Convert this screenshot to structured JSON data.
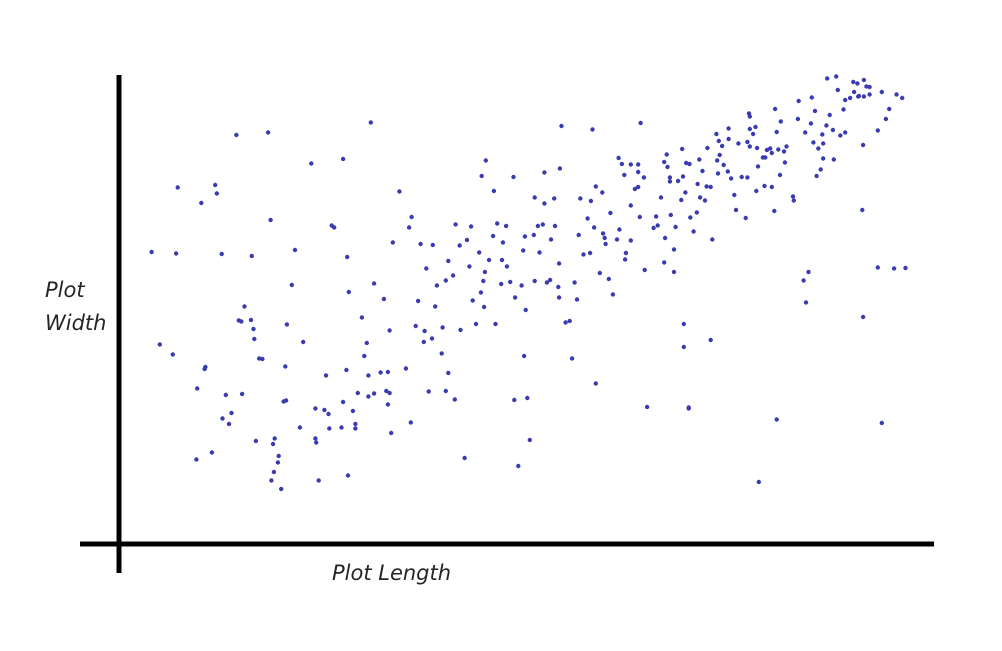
{
  "chart_data": {
    "type": "scatter",
    "title": "",
    "xlabel": "Plot Length",
    "ylabel_lines": [
      "Plot",
      "Width"
    ],
    "xlim": [
      0,
      100
    ],
    "ylim": [
      0,
      100
    ],
    "grid": false,
    "legend": "none",
    "colors": {
      "point": "#3b3bb0",
      "axis": "#000000",
      "label": "#262626"
    },
    "points": [
      [
        4.0,
        58.4
      ],
      [
        5.0,
        39.9
      ],
      [
        6.6,
        37.9
      ],
      [
        7.0,
        58.1
      ],
      [
        7.2,
        71.3
      ],
      [
        9.5,
        16.9
      ],
      [
        9.6,
        31.1
      ],
      [
        10.1,
        68.2
      ],
      [
        10.5,
        35.0
      ],
      [
        10.6,
        35.4
      ],
      [
        11.4,
        18.3
      ],
      [
        11.8,
        71.8
      ],
      [
        12.0,
        70.1
      ],
      [
        12.6,
        58.0
      ],
      [
        12.7,
        25.1
      ],
      [
        13.1,
        29.8
      ],
      [
        13.5,
        24.0
      ],
      [
        13.8,
        26.2
      ],
      [
        14.4,
        81.8
      ],
      [
        14.7,
        44.7
      ],
      [
        15.0,
        44.5
      ],
      [
        15.1,
        30.0
      ],
      [
        15.4,
        47.5
      ],
      [
        16.3,
        57.6
      ],
      [
        16.2,
        44.8
      ],
      [
        16.6,
        41.0
      ],
      [
        16.5,
        43.0
      ],
      [
        16.8,
        20.6
      ],
      [
        17.2,
        37.1
      ],
      [
        17.6,
        37.0
      ],
      [
        18.3,
        82.3
      ],
      [
        18.6,
        64.8
      ],
      [
        18.9,
        20.0
      ],
      [
        18.7,
        12.7
      ],
      [
        19.1,
        21.1
      ],
      [
        19.6,
        17.6
      ],
      [
        19.0,
        14.4
      ],
      [
        19.5,
        16.3
      ],
      [
        19.9,
        11.0
      ],
      [
        20.2,
        28.5
      ],
      [
        20.5,
        28.7
      ],
      [
        20.4,
        35.5
      ],
      [
        20.6,
        43.9
      ],
      [
        21.2,
        51.8
      ],
      [
        21.6,
        58.8
      ],
      [
        22.2,
        23.3
      ],
      [
        22.6,
        40.4
      ],
      [
        24.1,
        27.1
      ],
      [
        23.6,
        76.1
      ],
      [
        24.5,
        12.7
      ],
      [
        24.1,
        21.1
      ],
      [
        24.2,
        20.3
      ],
      [
        25.4,
        33.7
      ],
      [
        25.2,
        26.8
      ],
      [
        25.8,
        23.1
      ],
      [
        25.7,
        26.0
      ],
      [
        26.4,
        63.3
      ],
      [
        26.1,
        63.7
      ],
      [
        27.3,
        23.3
      ],
      [
        27.5,
        28.4
      ],
      [
        27.9,
        34.8
      ],
      [
        28.2,
        50.4
      ],
      [
        27.5,
        77.0
      ],
      [
        28.0,
        57.4
      ],
      [
        28.7,
        26.6
      ],
      [
        29.0,
        24.0
      ],
      [
        28.1,
        13.7
      ],
      [
        29.3,
        30.2
      ],
      [
        29.0,
        23.1
      ],
      [
        29.8,
        45.3
      ],
      [
        30.4,
        40.2
      ],
      [
        30.6,
        33.7
      ],
      [
        30.6,
        29.5
      ],
      [
        30.1,
        37.6
      ],
      [
        31.3,
        30.1
      ],
      [
        31.3,
        52.1
      ],
      [
        30.9,
        84.3
      ],
      [
        32.1,
        34.3
      ],
      [
        32.5,
        49.0
      ],
      [
        33.0,
        34.4
      ],
      [
        33.2,
        30.2
      ],
      [
        32.8,
        30.6
      ],
      [
        33.0,
        27.9
      ],
      [
        33.4,
        22.2
      ],
      [
        33.2,
        42.7
      ],
      [
        33.6,
        60.3
      ],
      [
        34.4,
        70.5
      ],
      [
        35.2,
        35.1
      ],
      [
        35.6,
        63.3
      ],
      [
        35.8,
        24.3
      ],
      [
        35.9,
        65.4
      ],
      [
        36.7,
        48.6
      ],
      [
        36.4,
        43.6
      ],
      [
        37.0,
        60.0
      ],
      [
        37.5,
        42.6
      ],
      [
        37.4,
        40.4
      ],
      [
        37.7,
        55.1
      ],
      [
        38.5,
        59.8
      ],
      [
        38.0,
        30.5
      ],
      [
        38.4,
        41.1
      ],
      [
        38.8,
        47.5
      ],
      [
        39.0,
        51.7
      ],
      [
        39.7,
        43.3
      ],
      [
        39.6,
        38.1
      ],
      [
        40.1,
        30.6
      ],
      [
        40.1,
        52.7
      ],
      [
        40.4,
        56.6
      ],
      [
        40.4,
        34.2
      ],
      [
        41.2,
        28.9
      ],
      [
        41.0,
        53.7
      ],
      [
        41.3,
        63.9
      ],
      [
        41.8,
        59.7
      ],
      [
        42.4,
        17.2
      ],
      [
        41.9,
        42.8
      ],
      [
        43.2,
        63.5
      ],
      [
        43.0,
        55.5
      ],
      [
        42.7,
        60.8
      ],
      [
        43.4,
        48.7
      ],
      [
        43.8,
        44.0
      ],
      [
        44.2,
        58.3
      ],
      [
        44.5,
        73.6
      ],
      [
        44.7,
        52.6
      ],
      [
        44.9,
        54.4
      ],
      [
        44.4,
        50.3
      ],
      [
        45.0,
        76.7
      ],
      [
        44.8,
        47.4
      ],
      [
        45.4,
        56.8
      ],
      [
        45.9,
        61.6
      ],
      [
        46.0,
        70.6
      ],
      [
        46.2,
        44.0
      ],
      [
        46.4,
        64.1
      ],
      [
        46.9,
        52.0
      ],
      [
        47.0,
        56.8
      ],
      [
        47.6,
        55.5
      ],
      [
        47.1,
        60.3
      ],
      [
        47.5,
        63.6
      ],
      [
        48.0,
        52.4
      ],
      [
        48.4,
        73.4
      ],
      [
        48.6,
        49.3
      ],
      [
        48.5,
        28.8
      ],
      [
        49.0,
        15.6
      ],
      [
        49.4,
        51.7
      ],
      [
        49.9,
        46.8
      ],
      [
        49.6,
        58.7
      ],
      [
        49.8,
        61.5
      ],
      [
        49.7,
        37.6
      ],
      [
        50.1,
        29.2
      ],
      [
        50.4,
        20.8
      ],
      [
        50.9,
        61.8
      ],
      [
        51.0,
        52.6
      ],
      [
        51.4,
        63.6
      ],
      [
        51.0,
        69.3
      ],
      [
        51.6,
        58.3
      ],
      [
        52.2,
        74.3
      ],
      [
        52.2,
        68.1
      ],
      [
        52.0,
        63.9
      ],
      [
        52.5,
        52.3
      ],
      [
        52.9,
        52.8
      ],
      [
        53.4,
        69.1
      ],
      [
        53.0,
        60.9
      ],
      [
        53.5,
        63.6
      ],
      [
        54.0,
        56.1
      ],
      [
        53.9,
        51.4
      ],
      [
        54.0,
        49.3
      ],
      [
        54.3,
        83.6
      ],
      [
        54.1,
        75.1
      ],
      [
        54.8,
        44.3
      ],
      [
        55.3,
        44.6
      ],
      [
        55.6,
        37.1
      ],
      [
        55.9,
        52.3
      ],
      [
        56.4,
        61.8
      ],
      [
        56.2,
        48.9
      ],
      [
        56.6,
        69.1
      ],
      [
        57.0,
        57.9
      ],
      [
        57.5,
        65.1
      ],
      [
        57.8,
        58.2
      ],
      [
        57.9,
        68.6
      ],
      [
        58.3,
        63.3
      ],
      [
        58.5,
        71.5
      ],
      [
        58.5,
        32.1
      ],
      [
        58.1,
        82.9
      ],
      [
        59.0,
        54.2
      ],
      [
        59.4,
        62.1
      ],
      [
        59.3,
        70.3
      ],
      [
        59.6,
        61.2
      ],
      [
        59.7,
        60.0
      ],
      [
        60.1,
        53.0
      ],
      [
        60.6,
        49.9
      ],
      [
        60.3,
        66.2
      ],
      [
        61.1,
        60.9
      ],
      [
        61.4,
        62.9
      ],
      [
        61.3,
        77.2
      ],
      [
        61.7,
        76.0
      ],
      [
        62.1,
        56.9
      ],
      [
        62.2,
        58.2
      ],
      [
        62.0,
        73.8
      ],
      [
        62.8,
        60.7
      ],
      [
        62.8,
        67.7
      ],
      [
        62.8,
        75.9
      ],
      [
        63.3,
        71.0
      ],
      [
        63.7,
        71.4
      ],
      [
        64.0,
        84.2
      ],
      [
        63.7,
        75.9
      ],
      [
        63.7,
        74.4
      ],
      [
        63.9,
        65.4
      ],
      [
        64.4,
        73.3
      ],
      [
        64.5,
        54.8
      ],
      [
        64.8,
        27.4
      ],
      [
        65.6,
        63.2
      ],
      [
        66.1,
        63.7
      ],
      [
        65.9,
        65.5
      ],
      [
        66.5,
        69.3
      ],
      [
        66.9,
        56.3
      ],
      [
        67.0,
        61.2
      ],
      [
        66.9,
        76.4
      ],
      [
        67.2,
        77.9
      ],
      [
        67.3,
        75.4
      ],
      [
        67.6,
        73.3
      ],
      [
        67.7,
        65.8
      ],
      [
        67.6,
        72.5
      ],
      [
        68.1,
        54.4
      ],
      [
        68.3,
        63.4
      ],
      [
        68.1,
        58.9
      ],
      [
        69.0,
        68.8
      ],
      [
        68.6,
        72.6
      ],
      [
        69.2,
        73.5
      ],
      [
        69.1,
        79.0
      ],
      [
        69.5,
        70.3
      ],
      [
        69.6,
        76.2
      ],
      [
        69.3,
        44.0
      ],
      [
        69.3,
        39.4
      ],
      [
        70.0,
        76.0
      ],
      [
        70.5,
        62.5
      ],
      [
        69.9,
        27.1
      ],
      [
        69.9,
        27.3
      ],
      [
        70.1,
        65.3
      ],
      [
        71.0,
        72.0
      ],
      [
        70.9,
        66.3
      ],
      [
        71.2,
        76.9
      ],
      [
        71.6,
        74.6
      ],
      [
        71.3,
        69.3
      ],
      [
        72.1,
        71.5
      ],
      [
        72.2,
        79.2
      ],
      [
        71.9,
        68.7
      ],
      [
        72.6,
        71.4
      ],
      [
        72.6,
        40.8
      ],
      [
        72.8,
        60.9
      ],
      [
        73.3,
        82.0
      ],
      [
        73.5,
        74.1
      ],
      [
        73.4,
        76.7
      ],
      [
        73.7,
        77.8
      ],
      [
        73.6,
        80.6
      ],
      [
        74.2,
        75.8
      ],
      [
        74.7,
        74.5
      ],
      [
        74.0,
        79.6
      ],
      [
        74.8,
        81.0
      ],
      [
        74.8,
        83.1
      ],
      [
        75.1,
        73.1
      ],
      [
        75.5,
        69.8
      ],
      [
        76.0,
        80.1
      ],
      [
        75.7,
        66.8
      ],
      [
        76.4,
        73.4
      ],
      [
        76.9,
        65.2
      ],
      [
        77.1,
        73.3
      ],
      [
        77.3,
        86.1
      ],
      [
        77.4,
        85.5
      ],
      [
        77.1,
        80.4
      ],
      [
        77.4,
        83.0
      ],
      [
        77.4,
        79.5
      ],
      [
        77.8,
        82.0
      ],
      [
        78.1,
        83.4
      ],
      [
        78.3,
        79.2
      ],
      [
        78.2,
        70.6
      ],
      [
        78.4,
        75.5
      ],
      [
        78.5,
        12.4
      ],
      [
        79.0,
        77.3
      ],
      [
        79.5,
        78.8
      ],
      [
        79.3,
        77.3
      ],
      [
        79.9,
        79.1
      ],
      [
        79.2,
        71.6
      ],
      [
        80.1,
        71.4
      ],
      [
        80.1,
        78.2
      ],
      [
        80.5,
        87.0
      ],
      [
        80.7,
        82.4
      ],
      [
        80.9,
        78.9
      ],
      [
        80.4,
        66.6
      ],
      [
        80.7,
        24.9
      ],
      [
        81.1,
        73.8
      ],
      [
        81.2,
        84.5
      ],
      [
        81.6,
        78.5
      ],
      [
        81.7,
        76.3
      ],
      [
        81.9,
        79.5
      ],
      [
        82.8,
        68.7
      ],
      [
        82.7,
        69.5
      ],
      [
        83.4,
        88.6
      ],
      [
        83.3,
        85.0
      ],
      [
        84.3,
        48.3
      ],
      [
        84.6,
        54.4
      ],
      [
        84.0,
        52.7
      ],
      [
        84.2,
        82.3
      ],
      [
        85.0,
        89.3
      ],
      [
        84.9,
        84.1
      ],
      [
        85.2,
        80.3
      ],
      [
        85.4,
        86.6
      ],
      [
        85.6,
        73.6
      ],
      [
        85.8,
        79.1
      ],
      [
        86.1,
        74.9
      ],
      [
        86.4,
        77.1
      ],
      [
        86.4,
        80.1
      ],
      [
        86.3,
        81.9
      ],
      [
        86.9,
        93.1
      ],
      [
        86.8,
        83.7
      ],
      [
        87.2,
        85.8
      ],
      [
        87.6,
        82.8
      ],
      [
        88.0,
        93.5
      ],
      [
        87.7,
        76.9
      ],
      [
        88.2,
        90.8
      ],
      [
        88.5,
        81.7
      ],
      [
        88.9,
        86.9
      ],
      [
        89.1,
        82.3
      ],
      [
        89.1,
        88.8
      ],
      [
        89.7,
        89.2
      ],
      [
        90.2,
        90.4
      ],
      [
        90.1,
        92.4
      ],
      [
        90.7,
        89.5
      ],
      [
        90.6,
        92.1
      ],
      [
        90.8,
        89.6
      ],
      [
        91.3,
        79.8
      ],
      [
        91.4,
        92.8
      ],
      [
        91.4,
        89.5
      ],
      [
        91.2,
        66.8
      ],
      [
        91.3,
        45.4
      ],
      [
        91.7,
        91.5
      ],
      [
        92.1,
        91.4
      ],
      [
        92.1,
        89.9
      ],
      [
        93.1,
        82.7
      ],
      [
        93.6,
        90.4
      ],
      [
        93.1,
        55.3
      ],
      [
        93.6,
        24.2
      ],
      [
        94.1,
        85.0
      ],
      [
        94.5,
        87.0
      ],
      [
        95.1,
        55.1
      ],
      [
        95.4,
        89.9
      ],
      [
        96.1,
        89.2
      ],
      [
        96.5,
        55.2
      ]
    ]
  }
}
